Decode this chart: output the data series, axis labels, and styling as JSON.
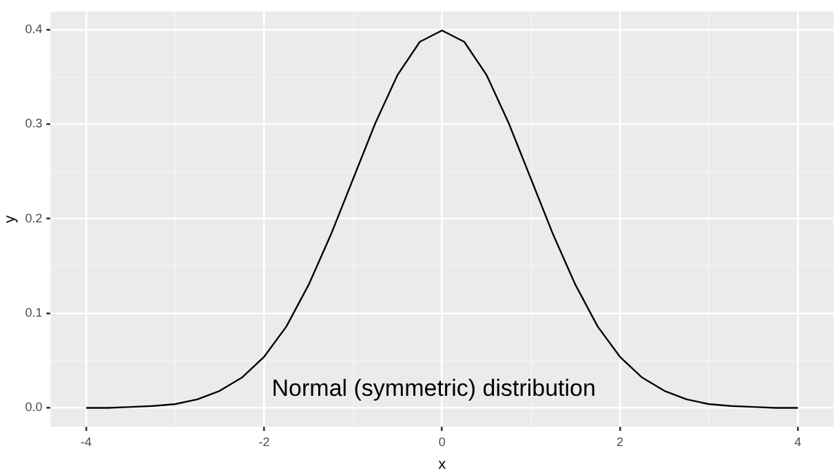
{
  "chart_data": {
    "type": "line",
    "xlabel": "x",
    "ylabel": "y",
    "color": "#000000",
    "grid": true,
    "x": [
      -4,
      -3.75,
      -3.5,
      -3.25,
      -3,
      -2.75,
      -2.5,
      -2.25,
      -2,
      -1.75,
      -1.5,
      -1.25,
      -1,
      -0.75,
      -0.5,
      -0.25,
      0,
      0.25,
      0.5,
      0.75,
      1,
      1.25,
      1.5,
      1.75,
      2,
      2.25,
      2.5,
      2.75,
      3,
      3.25,
      3.5,
      3.75,
      4
    ],
    "values": [
      0.0,
      0.0,
      0.001,
      0.002,
      0.004,
      0.009,
      0.018,
      0.032,
      0.054,
      0.086,
      0.13,
      0.183,
      0.242,
      0.301,
      0.352,
      0.387,
      0.399,
      0.387,
      0.352,
      0.301,
      0.242,
      0.183,
      0.13,
      0.086,
      0.054,
      0.032,
      0.018,
      0.009,
      0.004,
      0.002,
      0.001,
      0.0,
      0.0
    ],
    "xlim": [
      -4.4,
      4.4
    ],
    "xticks": [
      -4,
      {
        "value": -3,
        "label": null
      },
      -2,
      {
        "value": -1,
        "label": null
      },
      0,
      {
        "value": 1,
        "label": null
      },
      2,
      {
        "value": 3,
        "label": null
      },
      4
    ],
    "ylim": [
      -0.02,
      0.419
    ],
    "yticks": [
      {
        "value": 0,
        "label": "0.0"
      },
      {
        "value": 0.05,
        "label": null
      },
      0.1,
      {
        "value": 0.15,
        "label": null
      },
      0.2,
      {
        "value": 0.25,
        "label": null
      },
      0.3,
      {
        "value": 0.35,
        "label": null
      },
      0.4
    ],
    "annotations": [
      "Normal (symmetric) distribution"
    ]
  }
}
